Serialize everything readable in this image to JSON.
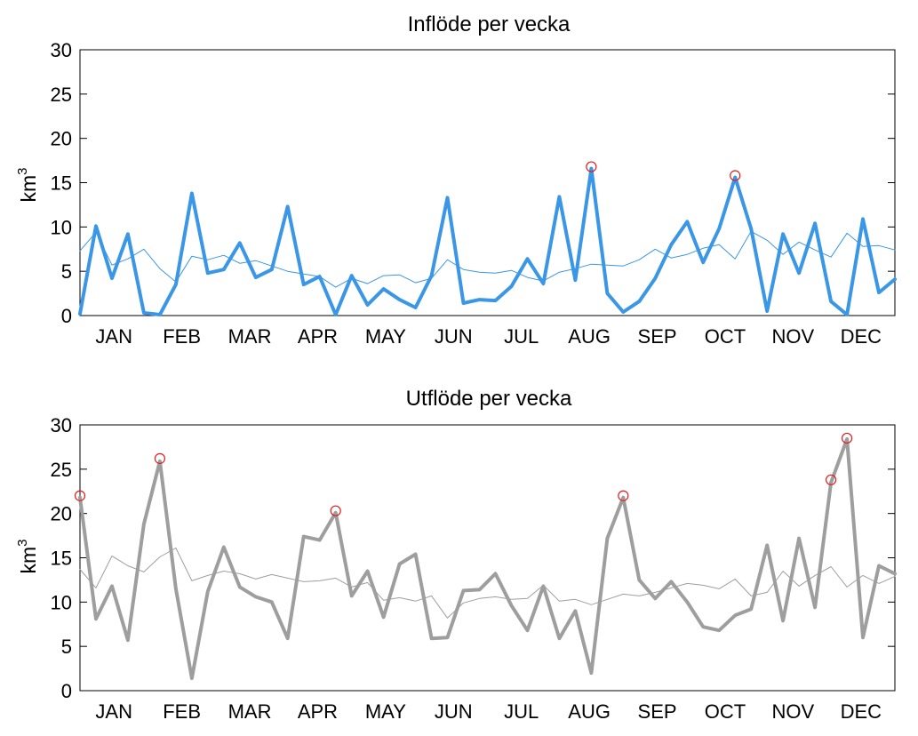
{
  "chart_data": [
    {
      "type": "line",
      "title": "Inflöde per vecka",
      "xlabel": "",
      "ylabel_base": "km",
      "ylabel_sup": "3",
      "ylim": [
        0,
        30
      ],
      "yticks": [
        0,
        5,
        10,
        15,
        20,
        25,
        30
      ],
      "month_labels": [
        "JAN",
        "FEB",
        "MAR",
        "APR",
        "MAY",
        "JUN",
        "JUL",
        "AUG",
        "SEP",
        "OCT",
        "NOV",
        "DEC"
      ],
      "x": [
        1,
        2,
        3,
        4,
        5,
        6,
        7,
        8,
        9,
        10,
        11,
        12,
        13,
        14,
        15,
        16,
        17,
        18,
        19,
        20,
        21,
        22,
        23,
        24,
        25,
        26,
        27,
        28,
        29,
        30,
        31,
        32,
        33,
        34,
        35,
        36,
        37,
        38,
        39,
        40,
        41,
        42,
        43,
        44,
        45,
        46,
        47,
        48,
        49,
        50,
        51,
        52
      ],
      "xlim": [
        1,
        52
      ],
      "grid": false,
      "series": [
        {
          "style": "thick",
          "color": "#3a96e6",
          "values": [
            0.2,
            10.1,
            4.2,
            9.2,
            0.3,
            0.1,
            3.5,
            13.8,
            4.8,
            5.2,
            8.2,
            4.3,
            5.2,
            12.3,
            3.5,
            4.4,
            0.1,
            4.5,
            1.2,
            3.0,
            1.8,
            0.9,
            4.5,
            13.3,
            1.4,
            1.8,
            1.7,
            3.3,
            6.4,
            3.6,
            13.4,
            4.0,
            16.6,
            2.5,
            0.4,
            1.6,
            4.2,
            8.0,
            10.6,
            6.0,
            9.8,
            15.6,
            9.8,
            0.5,
            9.2,
            4.8,
            10.4,
            1.6,
            0.1,
            10.9,
            2.6,
            4.1
          ]
        },
        {
          "style": "thin",
          "color": "#3a96e6",
          "values": [
            7.3,
            9.4,
            5.7,
            6.4,
            7.5,
            5.3,
            3.8,
            6.7,
            6.3,
            6.8,
            5.9,
            6.2,
            5.6,
            5.0,
            4.7,
            4.4,
            3.2,
            4.2,
            3.6,
            4.5,
            4.6,
            3.7,
            4.2,
            6.3,
            5.2,
            4.9,
            4.8,
            5.1,
            4.3,
            3.9,
            4.9,
            5.3,
            5.8,
            5.7,
            5.6,
            6.3,
            7.5,
            6.5,
            6.9,
            7.6,
            8.0,
            6.4,
            9.5,
            8.5,
            6.9,
            8.3,
            7.4,
            6.6,
            9.3,
            7.8,
            7.9,
            7.4
          ]
        }
      ],
      "markers": [
        {
          "x": 33,
          "y": 16.8
        },
        {
          "x": 42,
          "y": 15.8
        }
      ],
      "marker_color": "#e21b1b"
    },
    {
      "type": "line",
      "title": "Utflöde per vecka",
      "xlabel": "",
      "ylabel_base": "km",
      "ylabel_sup": "3",
      "ylim": [
        0,
        30
      ],
      "yticks": [
        0,
        5,
        10,
        15,
        20,
        25,
        30
      ],
      "month_labels": [
        "JAN",
        "FEB",
        "MAR",
        "APR",
        "MAY",
        "JUN",
        "JUL",
        "AUG",
        "SEP",
        "OCT",
        "NOV",
        "DEC"
      ],
      "x": [
        1,
        2,
        3,
        4,
        5,
        6,
        7,
        8,
        9,
        10,
        11,
        12,
        13,
        14,
        15,
        16,
        17,
        18,
        19,
        20,
        21,
        22,
        23,
        24,
        25,
        26,
        27,
        28,
        29,
        30,
        31,
        32,
        33,
        34,
        35,
        36,
        37,
        38,
        39,
        40,
        41,
        42,
        43,
        44,
        45,
        46,
        47,
        48,
        49,
        50,
        51,
        52
      ],
      "xlim": [
        1,
        52
      ],
      "grid": false,
      "series": [
        {
          "style": "thick",
          "color": "#9e9e9e",
          "values": [
            21.8,
            8.1,
            11.8,
            5.7,
            18.8,
            25.9,
            11.5,
            1.4,
            11.2,
            16.2,
            11.7,
            10.6,
            10.0,
            5.9,
            17.4,
            17.0,
            20.1,
            10.7,
            13.5,
            8.3,
            14.3,
            15.4,
            5.9,
            6.0,
            11.3,
            11.4,
            13.2,
            9.6,
            6.8,
            11.8,
            5.9,
            9.0,
            2.0,
            17.2,
            21.8,
            12.5,
            10.4,
            12.3,
            10.0,
            7.2,
            6.8,
            8.5,
            9.2,
            16.4,
            7.9,
            17.2,
            9.4,
            23.5,
            28.4,
            6.0,
            14.1,
            13.2
          ]
        },
        {
          "style": "thin",
          "color": "#9e9e9e",
          "values": [
            13.7,
            11.6,
            15.2,
            14.1,
            13.4,
            15.1,
            16.1,
            12.4,
            13.0,
            13.5,
            13.2,
            12.6,
            13.1,
            12.7,
            12.3,
            12.4,
            12.7,
            11.7,
            12.2,
            10.2,
            10.5,
            10.1,
            10.7,
            8.2,
            9.9,
            10.4,
            10.6,
            10.3,
            10.4,
            11.9,
            10.1,
            10.3,
            9.7,
            10.3,
            10.9,
            10.7,
            11.1,
            11.6,
            12.1,
            11.9,
            11.5,
            12.6,
            10.7,
            11.1,
            13.5,
            11.8,
            13.0,
            14.0,
            11.7,
            13.0,
            12.1,
            12.9
          ]
        }
      ],
      "markers": [
        {
          "x": 1,
          "y": 22.0
        },
        {
          "x": 6,
          "y": 26.2
        },
        {
          "x": 17,
          "y": 20.3
        },
        {
          "x": 35,
          "y": 22.0
        },
        {
          "x": 48,
          "y": 23.8
        },
        {
          "x": 49,
          "y": 28.5
        }
      ],
      "marker_color": "#e21b1b"
    }
  ]
}
